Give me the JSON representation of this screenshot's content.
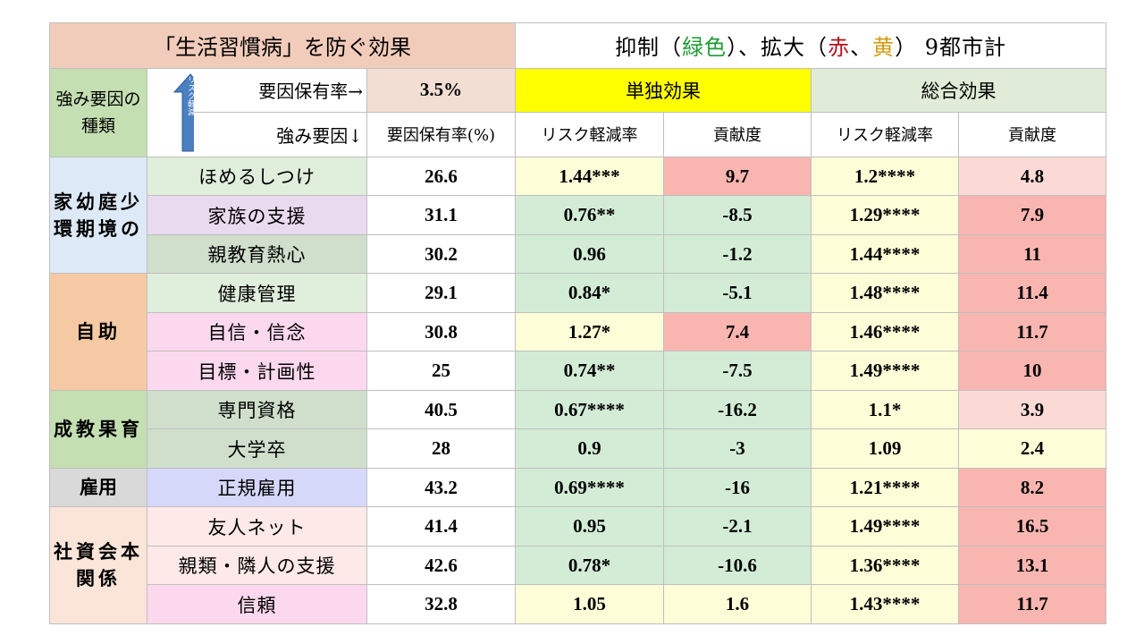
{
  "header": {
    "title_left": "「生活習慣病」を防ぐ効果",
    "title_right": {
      "prefix": "抑制（",
      "green_word": "緑色",
      "middle": "）、拡大（",
      "red_word": "赤",
      "sep": "、",
      "yellow_word": "黄",
      "suffix": "） 9都市計"
    },
    "group_head": "強み要因の種類",
    "arrow_text": "リスク軽減",
    "rate_label": "要因保有率→",
    "rate_value": "3.5%",
    "factor_label": "強み要因↓",
    "solo_effect": "単独効果",
    "total_effect": "総合効果",
    "col_rate": "要因保有率(%)",
    "col_risk": "リスク軽減率",
    "col_contrib": "貢献度"
  },
  "groups": [
    {
      "label": "家幼庭少環期境の",
      "rows": 3
    },
    {
      "label": "自助",
      "rows": 3
    },
    {
      "label": "成教果育",
      "rows": 2
    },
    {
      "label": "雇用",
      "rows": 1
    },
    {
      "label": "社資会本関係",
      "rows": 3
    }
  ],
  "rows": [
    {
      "factor": "ほめるしつけ",
      "rate": "26.6",
      "solo_risk": "1.44***",
      "solo_contrib": "9.7",
      "total_risk": "1.2****",
      "total_contrib": "4.8"
    },
    {
      "factor": "家族の支援",
      "rate": "31.1",
      "solo_risk": "0.76**",
      "solo_contrib": "-8.5",
      "total_risk": "1.29****",
      "total_contrib": "7.9"
    },
    {
      "factor": "親教育熱心",
      "rate": "30.2",
      "solo_risk": "0.96",
      "solo_contrib": "-1.2",
      "total_risk": "1.44****",
      "total_contrib": "11"
    },
    {
      "factor": "健康管理",
      "rate": "29.1",
      "solo_risk": "0.84*",
      "solo_contrib": "-5.1",
      "total_risk": "1.48****",
      "total_contrib": "11.4"
    },
    {
      "factor": "自信・信念",
      "rate": "30.8",
      "solo_risk": "1.27*",
      "solo_contrib": "7.4",
      "total_risk": "1.46****",
      "total_contrib": "11.7"
    },
    {
      "factor": "目標・計画性",
      "rate": "25",
      "solo_risk": "0.74**",
      "solo_contrib": "-7.5",
      "total_risk": "1.49****",
      "total_contrib": "10"
    },
    {
      "factor": "専門資格",
      "rate": "40.5",
      "solo_risk": "0.67****",
      "solo_contrib": "-16.2",
      "total_risk": "1.1*",
      "total_contrib": "3.9"
    },
    {
      "factor": "大学卒",
      "rate": "28",
      "solo_risk": "0.9",
      "solo_contrib": "-3",
      "total_risk": "1.09",
      "total_contrib": "2.4"
    },
    {
      "factor": "正規雇用",
      "rate": "43.2",
      "solo_risk": "0.69****",
      "solo_contrib": "-16",
      "total_risk": "1.21****",
      "total_contrib": "8.2"
    },
    {
      "factor": "友人ネット",
      "rate": "41.4",
      "solo_risk": "0.95",
      "solo_contrib": "-2.1",
      "total_risk": "1.49****",
      "total_contrib": "16.5"
    },
    {
      "factor": "親類・隣人の支援",
      "rate": "42.6",
      "solo_risk": "0.78*",
      "solo_contrib": "-10.6",
      "total_risk": "1.36****",
      "total_contrib": "13.1"
    },
    {
      "factor": "信頼",
      "rate": "32.8",
      "solo_risk": "1.05",
      "solo_contrib": "1.6",
      "total_risk": "1.43****",
      "total_contrib": "11.7"
    }
  ],
  "colors": {
    "green_text": "#1f9b34",
    "red_text": "#b0121b",
    "yellow_text": "#d39b12",
    "highlight_yellow": "#ffff00",
    "arrow_blue": "#4a7fc1"
  }
}
